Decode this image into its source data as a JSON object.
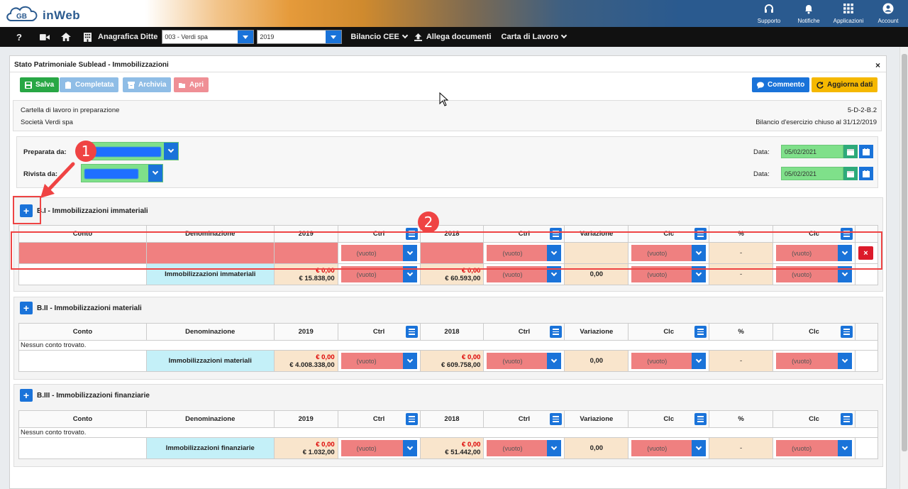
{
  "app": {
    "logo_text": "inWeb",
    "logo_mark": "GB",
    "top_icons": [
      {
        "icon": "headset-icon",
        "label": "Supporto"
      },
      {
        "icon": "bell-icon",
        "label": "Notifiche"
      },
      {
        "icon": "grid-icon",
        "label": "Applicazioni"
      },
      {
        "icon": "user-icon",
        "label": "Account"
      }
    ]
  },
  "nav": {
    "help": "?",
    "anagrafica_label": "Anagrafica Ditte",
    "company_value": "003 - Verdi spa",
    "year_value": "2019",
    "bilancio_label": "Bilancio CEE",
    "allega_label": "Allega documenti",
    "carta_label": "Carta di Lavoro"
  },
  "panel": {
    "title": "Stato Patrimoniale Sublead - Immobilizzazioni",
    "close": "×"
  },
  "toolbar": {
    "salva": "Salva",
    "completata": "Completata",
    "archivia": "Archivia",
    "apri": "Apri",
    "commento": "Commento",
    "aggiorna": "Aggiorna dati"
  },
  "info": {
    "status": "Cartella di lavoro in preparazione",
    "company": "Società Verdi spa",
    "code": "5-D-2-B.2",
    "bilancio": "Bilancio d'esercizio chiuso al 31/12/2019"
  },
  "prep": {
    "preparata_label": "Preparata da:",
    "rivista_label": "Rivista da:",
    "data_label": "Data:",
    "preparata_date": "05/02/2021",
    "rivista_date": "05/02/2021"
  },
  "columns": {
    "conto": "Conto",
    "denominazione": "Denominazione",
    "y1": "2019",
    "ctrl": "Ctrl",
    "y2": "2018",
    "variazione": "Variazione",
    "clc": "Clc",
    "pct": "%"
  },
  "common": {
    "vuoto": "(vuoto)",
    "nessun": "Nessun conto trovato.",
    "dash": "-",
    "delete": "×"
  },
  "sections": [
    {
      "title": "B.I - Immobilizzazioni immateriali",
      "total_label": "Immobilizzazioni immateriali",
      "y1_top": "€ 0,00",
      "y1_bottom": "€ 15.838,00",
      "y2_top": "€ 0,00",
      "y2_bottom": "€ 60.593,00",
      "variazione": "0,00"
    },
    {
      "title": "B.II - Immobilizzazioni materiali",
      "total_label": "Immobilizzazioni materiali",
      "y1_top": "€ 0,00",
      "y1_bottom": "€ 4.008.338,00",
      "y2_top": "€ 0,00",
      "y2_bottom": "€ 609.758,00",
      "variazione": "0,00"
    },
    {
      "title": "B.III - Immobilizzazioni finanziarie",
      "total_label": "Immobilizzazioni finanziarie",
      "y1_top": "€ 0,00",
      "y1_bottom": "€ 1.032,00",
      "y2_top": "€ 0,00",
      "y2_bottom": "€ 51.442,00",
      "variazione": "0,00"
    }
  ],
  "annotations": {
    "callout_1": "1",
    "callout_2": "2"
  }
}
